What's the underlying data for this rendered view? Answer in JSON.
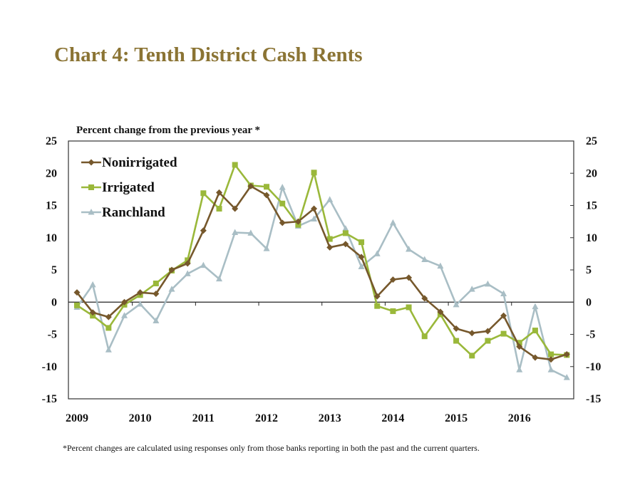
{
  "title": "Chart 4: Tenth District Cash Rents",
  "colors": {
    "title": "#8b7434",
    "nonirrigated": "#76582c",
    "irrigated": "#9ab83a",
    "ranchland": "#a9bec5"
  },
  "footnote": "*Percent changes are calculated using responses only from those banks reporting in both the past and the current quarters.",
  "chart_data": {
    "type": "line",
    "title": "Chart 4: Tenth District Cash Rents",
    "ylabel": "Percent change from the previous year *",
    "xlabel": "",
    "ylim": [
      -15,
      25
    ],
    "yticks": [
      "25",
      "20",
      "15",
      "10",
      "5",
      "0",
      "-5",
      "-10",
      "-15"
    ],
    "ytick_values": [
      25,
      20,
      15,
      10,
      5,
      0,
      -5,
      -10,
      -15
    ],
    "xticks": [
      "2009",
      "2010",
      "2011",
      "2012",
      "2013",
      "2014",
      "2015",
      "2016"
    ],
    "x_start": 2009,
    "points_per_year": 4,
    "legend_position": "top-left",
    "grid": false,
    "series": [
      {
        "name": "Nonirrigated",
        "marker": "diamond",
        "values": [
          1.5,
          -1.6,
          -2.3,
          0,
          1.5,
          1.3,
          5.0,
          6.0,
          11.1,
          17.0,
          14.5,
          18.0,
          16.6,
          12.3,
          12.5,
          14.5,
          8.5,
          9.0,
          7.0,
          0.9,
          3.5,
          3.8,
          0.6,
          -1.5,
          -4.1,
          -4.8,
          -4.5,
          -2.1,
          -6.9,
          -8.6,
          -8.9,
          -8.1
        ]
      },
      {
        "name": "Irrigated",
        "marker": "square",
        "values": [
          -0.5,
          -2.1,
          -4.0,
          -0.4,
          1.1,
          2.9,
          4.9,
          6.5,
          16.9,
          14.5,
          21.3,
          18.1,
          17.9,
          15.3,
          12.0,
          20.1,
          9.8,
          10.7,
          9.3,
          -0.6,
          -1.4,
          -0.8,
          -5.3,
          -1.9,
          -6.0,
          -8.3,
          -6.0,
          -4.9,
          -6.3,
          -4.4,
          -8.1,
          -8.2
        ]
      },
      {
        "name": "Ranchland",
        "marker": "triangle",
        "values": [
          -0.8,
          2.7,
          -7.4,
          -2.1,
          -0.3,
          -2.9,
          2.0,
          4.4,
          5.7,
          3.6,
          10.8,
          10.7,
          8.3,
          17.8,
          11.8,
          12.9,
          15.9,
          11.4,
          5.5,
          7.5,
          12.3,
          8.2,
          6.6,
          5.6,
          -0.4,
          2.0,
          2.8,
          1.3,
          -10.5,
          -0.7,
          -10.5,
          -11.7
        ]
      }
    ]
  }
}
